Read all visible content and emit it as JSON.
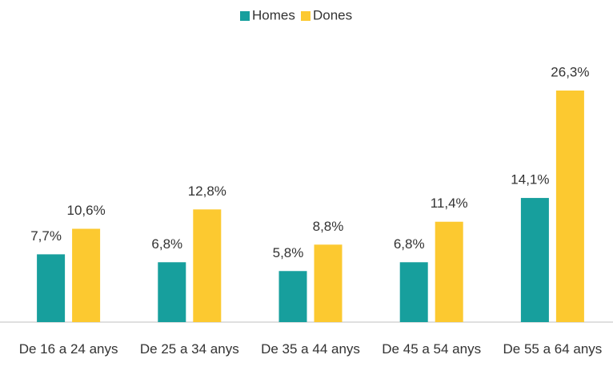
{
  "chart_data": {
    "type": "bar",
    "categories": [
      "De 16 a 24 anys",
      "De 25 a 34 anys",
      "De 35 a 44 anys",
      "De 45 a 54 anys",
      "De 55 a 64 anys"
    ],
    "series": [
      {
        "name": "Homes",
        "color": "#179f9d",
        "values": [
          7.7,
          6.8,
          5.8,
          6.8,
          14.1
        ],
        "value_labels": [
          "7,7%",
          "6,8%",
          "5,8%",
          "6,8%",
          "14,1%"
        ]
      },
      {
        "name": "Dones",
        "color": "#fcc930",
        "values": [
          10.6,
          12.8,
          8.8,
          11.4,
          26.3
        ],
        "value_labels": [
          "10,6%",
          "12,8%",
          "8,8%",
          "11,4%",
          "26,3%"
        ]
      }
    ],
    "legend": "top"
  }
}
